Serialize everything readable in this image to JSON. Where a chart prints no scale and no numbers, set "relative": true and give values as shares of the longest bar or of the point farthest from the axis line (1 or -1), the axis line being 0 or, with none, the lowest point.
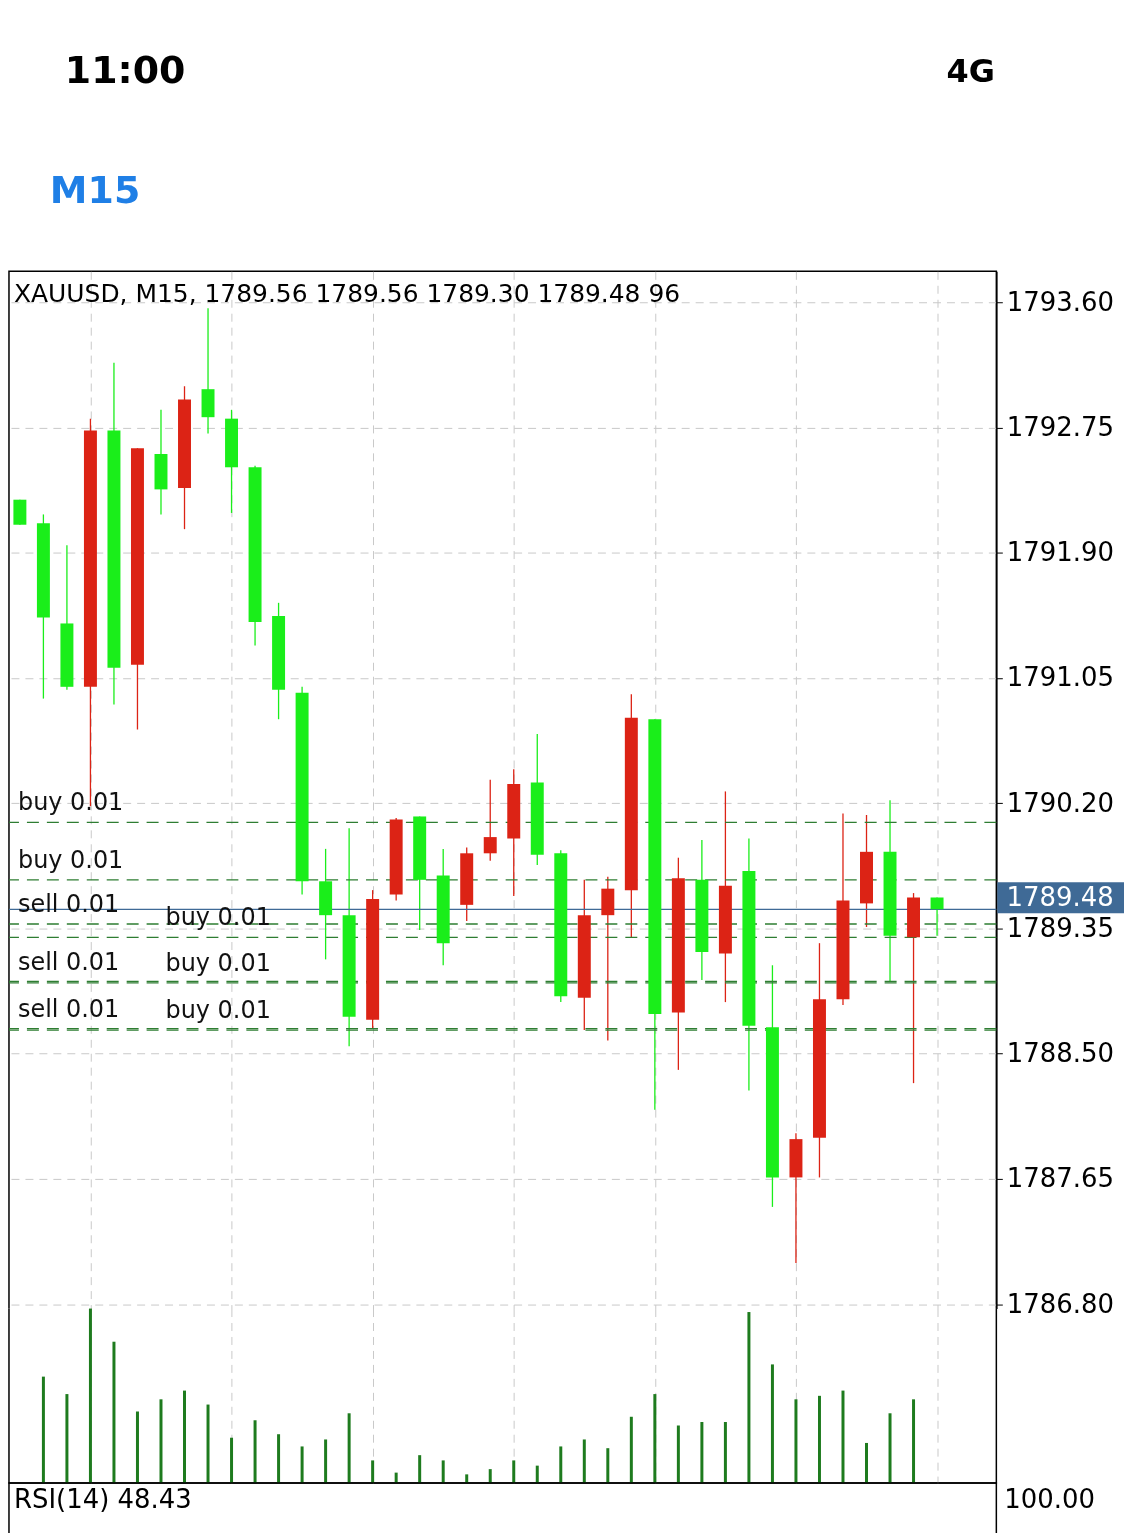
{
  "chart_data": [
    {
      "type": "other",
      "annotations": [
        "11:00",
        "4G",
        "M15"
      ]
    },
    {
      "type": "candlestick",
      "title": "XAUUSD, M15, 1789.56 1789.56 1789.30 1789.48 96",
      "categories": [
        null,
        null,
        null,
        null,
        null,
        null,
        null,
        null,
        null,
        null,
        null,
        null,
        null,
        null,
        null,
        null,
        null,
        null,
        null,
        null,
        null,
        null,
        null,
        null,
        null,
        null,
        null,
        null,
        null,
        null,
        null,
        null,
        null,
        null,
        null,
        null,
        null,
        null,
        null,
        null
      ],
      "ohlc": [
        [
          1792.26,
          1792.26,
          1792.09,
          1792.09
        ],
        [
          1792.1,
          1792.16,
          1790.91,
          1791.46
        ],
        [
          1791.42,
          1791.95,
          1790.97,
          1790.99
        ],
        [
          1790.99,
          1792.81,
          1790.18,
          1792.73
        ],
        [
          1792.73,
          1793.19,
          1790.87,
          1791.12
        ],
        [
          1791.14,
          1792.61,
          1790.7,
          1792.61
        ],
        [
          1792.57,
          1792.87,
          1792.16,
          1792.33
        ],
        [
          1792.34,
          1793.03,
          1792.06,
          1792.94
        ],
        [
          1793.01,
          1793.56,
          1792.71,
          1792.82
        ],
        [
          1792.81,
          1792.87,
          1792.17,
          1792.48
        ],
        [
          1792.48,
          1792.49,
          1791.27,
          1791.43
        ],
        [
          1791.47,
          1791.56,
          1790.77,
          1790.97
        ],
        [
          1790.95,
          1790.99,
          1789.58,
          1789.67
        ],
        [
          1789.67,
          1789.89,
          1789.14,
          1789.44
        ],
        [
          1789.44,
          1790.03,
          1788.55,
          1788.75
        ],
        [
          1788.73,
          1789.61,
          1788.67,
          1789.55
        ],
        [
          1789.58,
          1790.1,
          1789.54,
          1790.09
        ],
        [
          1790.11,
          1790.11,
          1789.34,
          1789.68
        ],
        [
          1789.71,
          1789.89,
          1789.1,
          1789.25
        ],
        [
          1789.51,
          1789.9,
          1789.4,
          1789.86
        ],
        [
          1789.86,
          1790.36,
          1789.81,
          1789.97
        ],
        [
          1789.96,
          1790.43,
          1789.57,
          1790.33
        ],
        [
          1790.34,
          1790.67,
          1789.78,
          1789.85
        ],
        [
          1789.86,
          1789.88,
          1788.85,
          1788.89
        ],
        [
          1788.88,
          1789.68,
          1788.66,
          1789.44
        ],
        [
          1789.44,
          1789.7,
          1788.59,
          1789.62
        ],
        [
          1789.61,
          1790.94,
          1789.29,
          1790.78
        ],
        [
          1790.77,
          1790.77,
          1788.12,
          1788.77
        ],
        [
          1788.78,
          1789.83,
          1788.39,
          1789.69
        ],
        [
          1789.68,
          1789.95,
          1789.0,
          1789.19
        ],
        [
          1789.18,
          1790.28,
          1788.85,
          1789.64
        ],
        [
          1789.74,
          1789.96,
          1788.25,
          1788.69
        ],
        [
          1788.68,
          1789.1,
          1787.46,
          1787.66
        ],
        [
          1787.66,
          1787.96,
          1787.08,
          1787.92
        ],
        [
          1787.93,
          1789.25,
          1787.66,
          1788.87
        ],
        [
          1788.87,
          1790.13,
          1788.83,
          1789.54
        ],
        [
          1789.52,
          1790.12,
          1789.36,
          1789.87
        ],
        [
          1789.87,
          1790.22,
          1788.99,
          1789.3
        ],
        [
          1789.29,
          1789.59,
          1788.3,
          1789.56
        ],
        [
          1789.56,
          1789.56,
          1789.3,
          1789.48
        ]
      ],
      "colors": [
        "#1aee1a",
        "#1aee1a",
        "#1aee1a",
        "#dc2315",
        "#1aee1a",
        "#dc2315",
        "#1aee1a",
        "#dc2315",
        "#1aee1a",
        "#1aee1a",
        "#1aee1a",
        "#1aee1a",
        "#1aee1a",
        "#1aee1a",
        "#1aee1a",
        "#dc2315",
        "#dc2315",
        "#1aee1a",
        "#1aee1a",
        "#dc2315",
        "#dc2315",
        "#dc2315",
        "#1aee1a",
        "#1aee1a",
        "#dc2315",
        "#dc2315",
        "#dc2315",
        "#1aee1a",
        "#dc2315",
        "#1aee1a",
        "#dc2315",
        "#1aee1a",
        "#1aee1a",
        "#dc2315",
        "#dc2315",
        "#dc2315",
        "#dc2315",
        "#1aee1a",
        "#dc2315",
        "#1aee1a"
      ],
      "ylim": [
        1786.77,
        1793.81
      ],
      "yticks": [
        {
          "value": 1786.8,
          "label": "1786.80"
        },
        {
          "value": 1787.65,
          "label": "1787.65"
        },
        {
          "value": 1788.5,
          "label": "1788.50"
        },
        {
          "value": 1789.35,
          "label": "1789.35"
        },
        {
          "value": 1790.2,
          "label": "1790.20"
        },
        {
          "value": 1791.05,
          "label": "1791.05"
        },
        {
          "value": 1791.9,
          "label": "1791.90"
        },
        {
          "value": 1792.75,
          "label": "1792.75"
        },
        {
          "value": 1793.6,
          "label": "1793.60"
        }
      ],
      "grid": true,
      "tick_labels": "y",
      "ref_lines": [
        {
          "axis": "y",
          "value": 1790.07,
          "label": "buy 0.01",
          "color": "#2e7d32",
          "line_style": "dashed"
        },
        {
          "axis": "y",
          "value": 1789.68,
          "label": "buy 0.01",
          "color": "#2e7d32",
          "line_style": "dashed"
        },
        {
          "axis": "y",
          "value": 1789.38,
          "label": "sell 0.01",
          "color": "#2e7d32",
          "line_style": "dashed"
        },
        {
          "axis": "y",
          "value": 1789.29,
          "label": "buy 0.01",
          "color": "#2e7d32",
          "line_style": "dashed"
        },
        {
          "axis": "y",
          "value": 1788.99,
          "label": "sell 0.01",
          "color": "#2e7d32",
          "line_style": "dashed"
        },
        {
          "axis": "y",
          "value": 1788.98,
          "label": "buy 0.01",
          "color": "#2e7d32",
          "line_style": "dashed"
        },
        {
          "axis": "y",
          "value": 1788.67,
          "label": "sell 0.01",
          "color": "#2e7d32",
          "line_style": "dashed"
        },
        {
          "axis": "y",
          "value": 1788.66,
          "label": "buy 0.01",
          "color": "#2e7d32",
          "line_style": "dashed"
        },
        {
          "axis": "y",
          "value": 1789.48,
          "label": "1789.48",
          "color": "#3f6a96",
          "line_style": "solid"
        }
      ]
    },
    {
      "type": "bar",
      "relative": true,
      "categories": [
        null,
        null,
        null,
        null,
        null,
        null,
        null,
        null,
        null,
        null,
        null,
        null,
        null,
        null,
        null,
        null,
        null,
        null,
        null,
        null,
        null,
        null,
        null,
        null,
        null,
        null,
        null,
        null,
        null,
        null,
        null,
        null,
        null,
        null,
        null,
        null,
        null,
        null,
        null,
        null
      ],
      "values": [
        null,
        0.61,
        0.51,
        1,
        0.81,
        0.41,
        0.48,
        0.53,
        0.45,
        0.26,
        0.36,
        0.28,
        0.21,
        0.25,
        0.4,
        0.13,
        0.06,
        0.16,
        0.13,
        0.05,
        0.08,
        0.13,
        0.1,
        0.21,
        0.25,
        0.2,
        0.38,
        0.51,
        0.33,
        0.35,
        0.35,
        0.98,
        0.68,
        0.48,
        0.5,
        0.53,
        0.23,
        0.4,
        0.48,
        null
      ],
      "color": "#1e7b1e",
      "grid": "x",
      "tick_labels": false
    },
    {
      "type": "other",
      "title": "RSI(14) 48.43",
      "annotations": [
        "100.00"
      ]
    }
  ]
}
